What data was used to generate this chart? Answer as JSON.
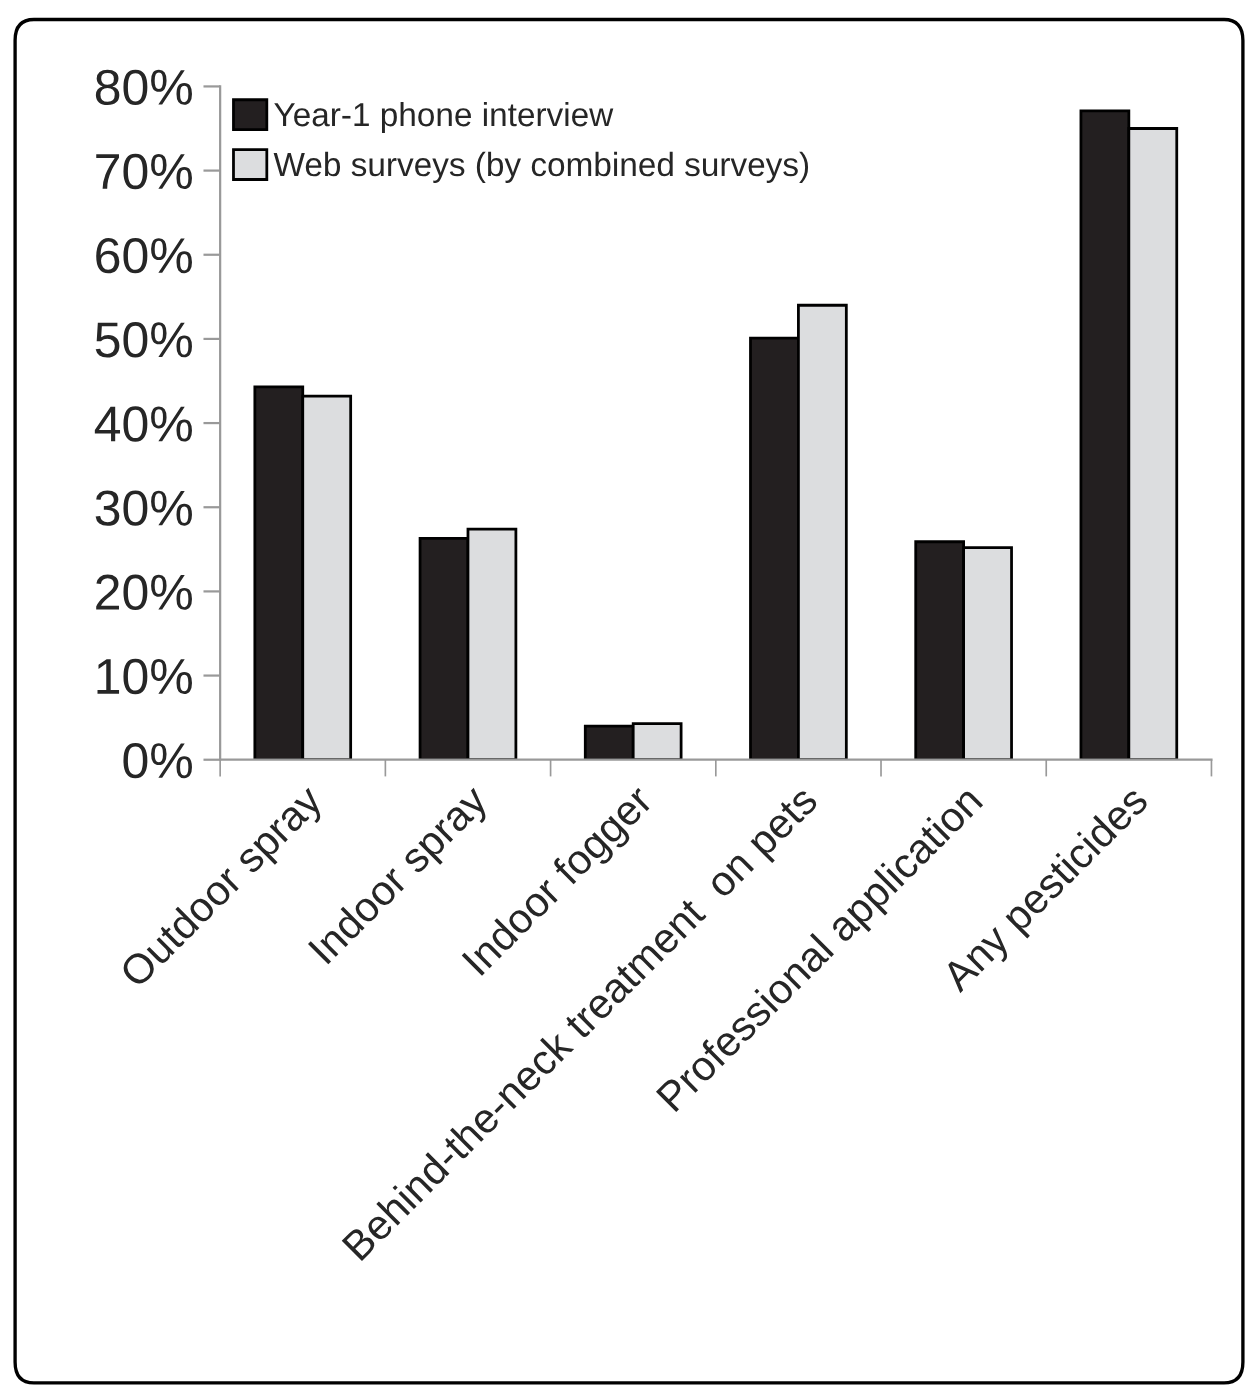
{
  "chart_data": {
    "type": "bar",
    "categories": [
      "Outdoor spray",
      "Indoor spray",
      "Indoor fogger",
      "Behind-the-neck treatment  on pets",
      "Professional application",
      "Any pesticides"
    ],
    "series": [
      {
        "name": "Year-1 phone interview",
        "color": "#231f20",
        "values": [
          44.3,
          26.3,
          4.0,
          50.1,
          25.9,
          77.1
        ]
      },
      {
        "name": "Web surveys (by combined surveys)",
        "color": "#dcdddf",
        "values": [
          43.2,
          27.4,
          4.3,
          54.0,
          25.2,
          75.0
        ]
      }
    ],
    "ylim": [
      0,
      80
    ],
    "yticks": [
      {
        "value": 0,
        "label": "0%"
      },
      {
        "value": 10,
        "label": "10%"
      },
      {
        "value": 20,
        "label": "20%"
      },
      {
        "value": 30,
        "label": "30%"
      },
      {
        "value": 40,
        "label": "40%"
      },
      {
        "value": 50,
        "label": "50%"
      },
      {
        "value": 60,
        "label": "60%"
      },
      {
        "value": 70,
        "label": "70%"
      },
      {
        "value": 80,
        "label": "80%"
      }
    ],
    "grid": false,
    "legend": "top left"
  }
}
